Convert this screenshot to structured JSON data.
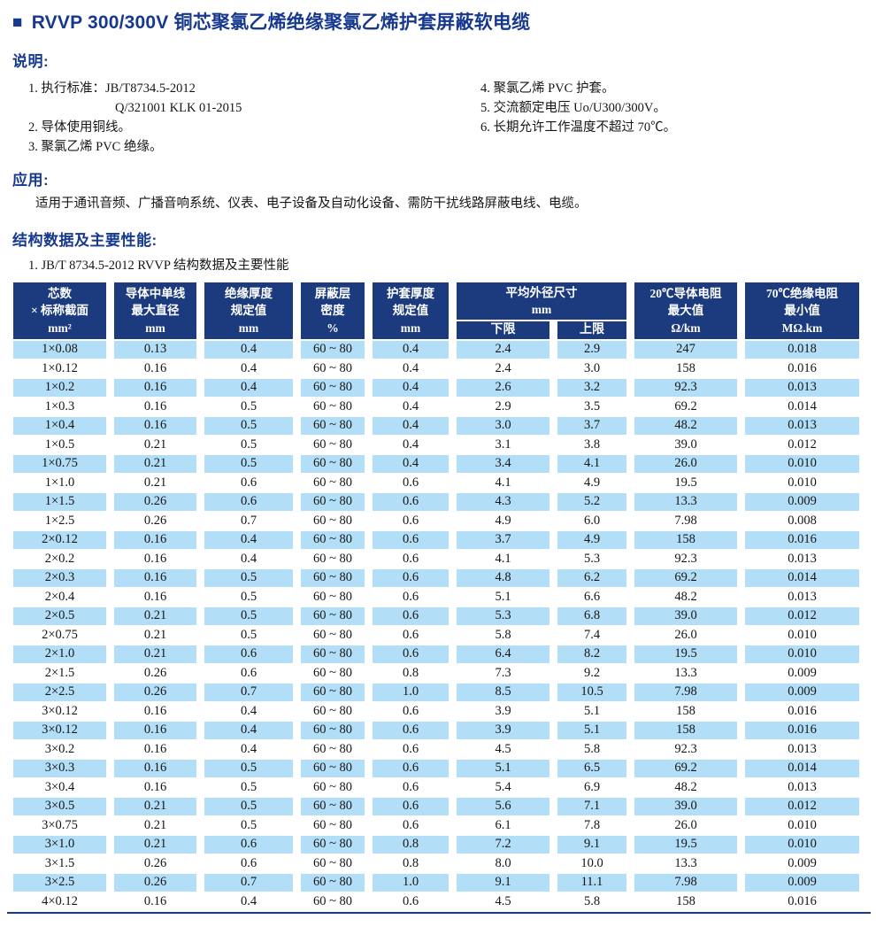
{
  "title": {
    "bullet": "■",
    "text": "RVVP 300/300V 铜芯聚氯乙烯绝缘聚氯乙烯护套屏蔽软电缆"
  },
  "description": {
    "heading": "说明:",
    "left_items": [
      {
        "text": "1. 执行标准：JB/T8734.5-2012",
        "indent": false
      },
      {
        "text": "Q/321001 KLK 01-2015",
        "indent": true
      },
      {
        "text": "2. 导体使用铜线。",
        "indent": false
      },
      {
        "text": "3. 聚氯乙烯 PVC 绝缘。",
        "indent": false
      }
    ],
    "right_items": [
      {
        "text": "4. 聚氯乙烯 PVC 护套。",
        "indent": false
      },
      {
        "text": "5. 交流额定电压 Uo/U300/300V。",
        "indent": false
      },
      {
        "text": "6. 长期允许工作温度不超过 70℃。",
        "indent": false
      }
    ]
  },
  "application": {
    "heading": "应用:",
    "body": "适用于通讯音频、广播音响系统、仪表、电子设备及自动化设备、需防干扰线路屏蔽电线、电缆。"
  },
  "structure": {
    "heading": "结构数据及主要性能:",
    "subtitle": "1. JB/T 8734.5-2012 RVVP 结构数据及主要性能"
  },
  "table": {
    "headers": {
      "cores": "芯数\n× 标称截面\nmm²",
      "conductor": "导体中单线\n最大直径\nmm",
      "insulation": "绝缘厚度\n规定值\nmm",
      "shield": "屏蔽层\n密度\n%",
      "sheath": "护套厚度\n规定值\nmm",
      "avg_od": "平均外径尺寸\nmm",
      "lower": "下限",
      "upper": "上限",
      "resistance20": "20℃导体电阻\n最大值\nΩ/km",
      "insulation70": "70℃绝缘电阻\n最小值\nMΩ.km"
    },
    "rows": [
      [
        "1×0.08",
        "0.13",
        "0.4",
        "60 ~ 80",
        "0.4",
        "2.4",
        "2.9",
        "247",
        "0.018"
      ],
      [
        "1×0.12",
        "0.16",
        "0.4",
        "60 ~ 80",
        "0.4",
        "2.4",
        "3.0",
        "158",
        "0.016"
      ],
      [
        "1×0.2",
        "0.16",
        "0.4",
        "60 ~ 80",
        "0.4",
        "2.6",
        "3.2",
        "92.3",
        "0.013"
      ],
      [
        "1×0.3",
        "0.16",
        "0.5",
        "60 ~ 80",
        "0.4",
        "2.9",
        "3.5",
        "69.2",
        "0.014"
      ],
      [
        "1×0.4",
        "0.16",
        "0.5",
        "60 ~ 80",
        "0.4",
        "3.0",
        "3.7",
        "48.2",
        "0.013"
      ],
      [
        "1×0.5",
        "0.21",
        "0.5",
        "60 ~ 80",
        "0.4",
        "3.1",
        "3.8",
        "39.0",
        "0.012"
      ],
      [
        "1×0.75",
        "0.21",
        "0.5",
        "60 ~ 80",
        "0.4",
        "3.4",
        "4.1",
        "26.0",
        "0.010"
      ],
      [
        "1×1.0",
        "0.21",
        "0.6",
        "60 ~ 80",
        "0.6",
        "4.1",
        "4.9",
        "19.5",
        "0.010"
      ],
      [
        "1×1.5",
        "0.26",
        "0.6",
        "60 ~ 80",
        "0.6",
        "4.3",
        "5.2",
        "13.3",
        "0.009"
      ],
      [
        "1×2.5",
        "0.26",
        "0.7",
        "60 ~ 80",
        "0.6",
        "4.9",
        "6.0",
        "7.98",
        "0.008"
      ],
      [
        "2×0.12",
        "0.16",
        "0.4",
        "60 ~ 80",
        "0.6",
        "3.7",
        "4.9",
        "158",
        "0.016"
      ],
      [
        "2×0.2",
        "0.16",
        "0.4",
        "60 ~ 80",
        "0.6",
        "4.1",
        "5.3",
        "92.3",
        "0.013"
      ],
      [
        "2×0.3",
        "0.16",
        "0.5",
        "60 ~ 80",
        "0.6",
        "4.8",
        "6.2",
        "69.2",
        "0.014"
      ],
      [
        "2×0.4",
        "0.16",
        "0.5",
        "60 ~ 80",
        "0.6",
        "5.1",
        "6.6",
        "48.2",
        "0.013"
      ],
      [
        "2×0.5",
        "0.21",
        "0.5",
        "60 ~ 80",
        "0.6",
        "5.3",
        "6.8",
        "39.0",
        "0.012"
      ],
      [
        "2×0.75",
        "0.21",
        "0.5",
        "60 ~ 80",
        "0.6",
        "5.8",
        "7.4",
        "26.0",
        "0.010"
      ],
      [
        "2×1.0",
        "0.21",
        "0.6",
        "60 ~ 80",
        "0.6",
        "6.4",
        "8.2",
        "19.5",
        "0.010"
      ],
      [
        "2×1.5",
        "0.26",
        "0.6",
        "60 ~ 80",
        "0.8",
        "7.3",
        "9.2",
        "13.3",
        "0.009"
      ],
      [
        "2×2.5",
        "0.26",
        "0.7",
        "60 ~ 80",
        "1.0",
        "8.5",
        "10.5",
        "7.98",
        "0.009"
      ],
      [
        "3×0.12",
        "0.16",
        "0.4",
        "60 ~ 80",
        "0.6",
        "3.9",
        "5.1",
        "158",
        "0.016"
      ],
      [
        "3×0.12",
        "0.16",
        "0.4",
        "60 ~ 80",
        "0.6",
        "3.9",
        "5.1",
        "158",
        "0.016"
      ],
      [
        "3×0.2",
        "0.16",
        "0.4",
        "60 ~ 80",
        "0.6",
        "4.5",
        "5.8",
        "92.3",
        "0.013"
      ],
      [
        "3×0.3",
        "0.16",
        "0.5",
        "60 ~ 80",
        "0.6",
        "5.1",
        "6.5",
        "69.2",
        "0.014"
      ],
      [
        "3×0.4",
        "0.16",
        "0.5",
        "60 ~ 80",
        "0.6",
        "5.4",
        "6.9",
        "48.2",
        "0.013"
      ],
      [
        "3×0.5",
        "0.21",
        "0.5",
        "60 ~ 80",
        "0.6",
        "5.6",
        "7.1",
        "39.0",
        "0.012"
      ],
      [
        "3×0.75",
        "0.21",
        "0.5",
        "60 ~ 80",
        "0.6",
        "6.1",
        "7.8",
        "26.0",
        "0.010"
      ],
      [
        "3×1.0",
        "0.21",
        "0.6",
        "60 ~ 80",
        "0.8",
        "7.2",
        "9.1",
        "19.5",
        "0.010"
      ],
      [
        "3×1.5",
        "0.26",
        "0.6",
        "60 ~ 80",
        "0.8",
        "8.0",
        "10.0",
        "13.3",
        "0.009"
      ],
      [
        "3×2.5",
        "0.26",
        "0.7",
        "60 ~ 80",
        "1.0",
        "9.1",
        "11.1",
        "7.98",
        "0.009"
      ],
      [
        "4×0.12",
        "0.16",
        "0.4",
        "60 ~ 80",
        "0.6",
        "4.5",
        "5.8",
        "158",
        "0.016"
      ]
    ]
  },
  "colors": {
    "heading_blue": "#16388e",
    "table_header_navy": "#1c3b7e",
    "row_stripe_blue": "#b3def7",
    "text_black": "#151515"
  }
}
